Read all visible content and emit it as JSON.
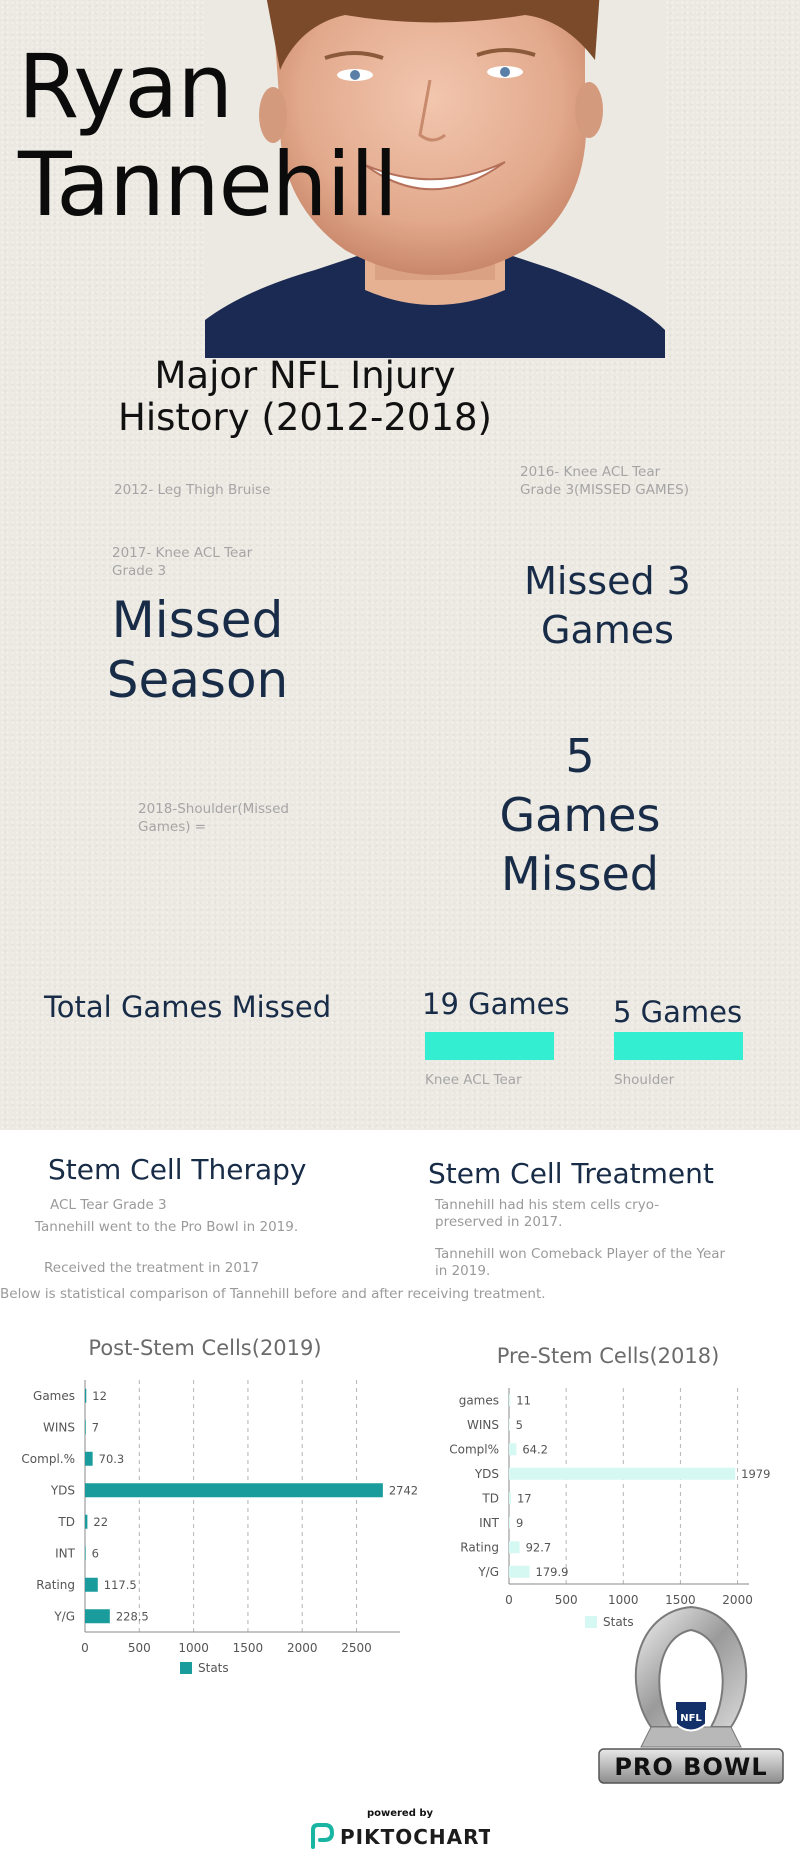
{
  "hero": {
    "name_line1": "Ryan",
    "name_line2": "Tannehill"
  },
  "injury_section": {
    "title_line1": "Major NFL Injury",
    "title_line2": "History (2012-2018)",
    "injury_2012": "2012- Leg Thigh Bruise",
    "injury_2016_line1": "2016- Knee ACL Tear",
    "injury_2016_line2": "Grade 3(MISSED GAMES)",
    "injury_2017_line1": "2017- Knee ACL Tear",
    "injury_2017_line2": "Grade 3",
    "missed_season_line1": "Missed",
    "missed_season_line2": "Season",
    "missed_3_line1": "Missed 3",
    "missed_3_line2": "Games",
    "injury_2018_line1": "2018-Shoulder(Missed",
    "injury_2018_line2": "Games) =",
    "games5_line1": "5",
    "games5_line2": "Games",
    "games5_line3": "Missed"
  },
  "totals": {
    "label": "Total Games Missed",
    "knee_value": "19 Games",
    "knee_caption": "Knee ACL Tear",
    "shoulder_value": "5 Games",
    "shoulder_caption": "Shoulder"
  },
  "stem_cell": {
    "therapy_title": "Stem Cell Therapy",
    "therapy_sub": "ACL Tear Grade 3",
    "pro_bowl_text": "Tannehill went to the Pro Bowl in 2019.",
    "received_text": "Received the treatment in 2017",
    "comparison_text": "Below is statistical comparison of Tannehill before and after receiving treatment.",
    "treatment_title": "Stem Cell Treatment",
    "preserved_line1": "Tannehill had his stem cells cryo-",
    "preserved_line2": "preserved in 2017.",
    "comeback_line1": "Tannehill won Comeback Player of the Year",
    "comeback_line2": "in 2019."
  },
  "colors": {
    "teal_dark": "#1a9c9c",
    "teal_light": "#d6f8f2",
    "teal_bright": "#33eed0",
    "navy": "#182c48"
  },
  "chart_data": [
    {
      "type": "bar",
      "orientation": "horizontal",
      "title": "Post-Stem Cells(2019)",
      "categories": [
        "Games",
        "WINS",
        "Compl.%",
        "YDS",
        "TD",
        "INT",
        "Rating",
        "Y/G"
      ],
      "series": [
        {
          "name": "Stats",
          "values": [
            12,
            7,
            70.3,
            2742,
            22,
            6,
            117.5,
            228.5
          ]
        }
      ],
      "value_labels": [
        "12",
        "7",
        "70.3",
        "2742",
        "22",
        "6",
        "117.5",
        "228.5"
      ],
      "xlim": [
        0,
        2900
      ],
      "xticks": [
        "0",
        "500",
        "1000",
        "1500",
        "2000",
        "2500"
      ],
      "grid": true,
      "legend": "bottom"
    },
    {
      "type": "bar",
      "orientation": "horizontal",
      "title": "Pre-Stem Cells(2018)",
      "categories": [
        "games",
        "WINS",
        "Compl%",
        "YDS",
        "TD",
        "INT",
        "Rating",
        "Y/G"
      ],
      "series": [
        {
          "name": "Stats",
          "values": [
            11,
            5,
            64.2,
            1979,
            17,
            9,
            92.7,
            179.9
          ]
        }
      ],
      "value_labels": [
        "11",
        "5",
        "64.2",
        "1979",
        "17",
        "9",
        "92.7",
        "179.9"
      ],
      "xlim": [
        0,
        2100
      ],
      "xticks": [
        "0",
        "500",
        "1000",
        "1500",
        "2000"
      ],
      "grid": true,
      "legend": "bottom"
    }
  ],
  "logo": {
    "pro_bowl_text": "PRO BOWL",
    "nfl_text": "NFL"
  },
  "footer": {
    "powered_by": "powered by",
    "brand": "PIKTOCHART"
  }
}
